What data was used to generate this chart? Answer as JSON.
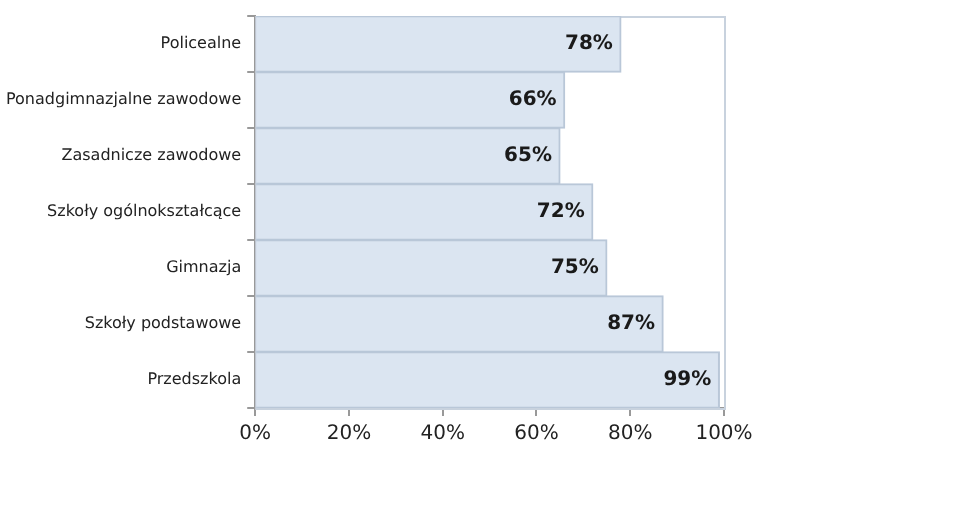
{
  "chart_data": {
    "type": "bar",
    "orientation": "horizontal",
    "categories": [
      "Policealne",
      "Ponadgimnazjalne zawodowe",
      "Zasadnicze zawodowe",
      "Szkoły ogólnokształcące",
      "Gimnazja",
      "Szkoły podstawowe",
      "Przedszkola"
    ],
    "values": [
      78,
      66,
      65,
      72,
      75,
      87,
      99
    ],
    "value_labels": [
      "78%",
      "66%",
      "65%",
      "72%",
      "75%",
      "87%",
      "99%"
    ],
    "color": "#dbe5f1",
    "xlim": [
      0,
      100
    ],
    "xticks": [
      {
        "value": 0,
        "label": "0%"
      },
      {
        "value": 20,
        "label": "20%"
      },
      {
        "value": 40,
        "label": "40%"
      },
      {
        "value": 60,
        "label": "60%"
      },
      {
        "value": 80,
        "label": "80%"
      },
      {
        "value": 100,
        "label": "100%"
      }
    ],
    "grid": false,
    "legend": false
  }
}
